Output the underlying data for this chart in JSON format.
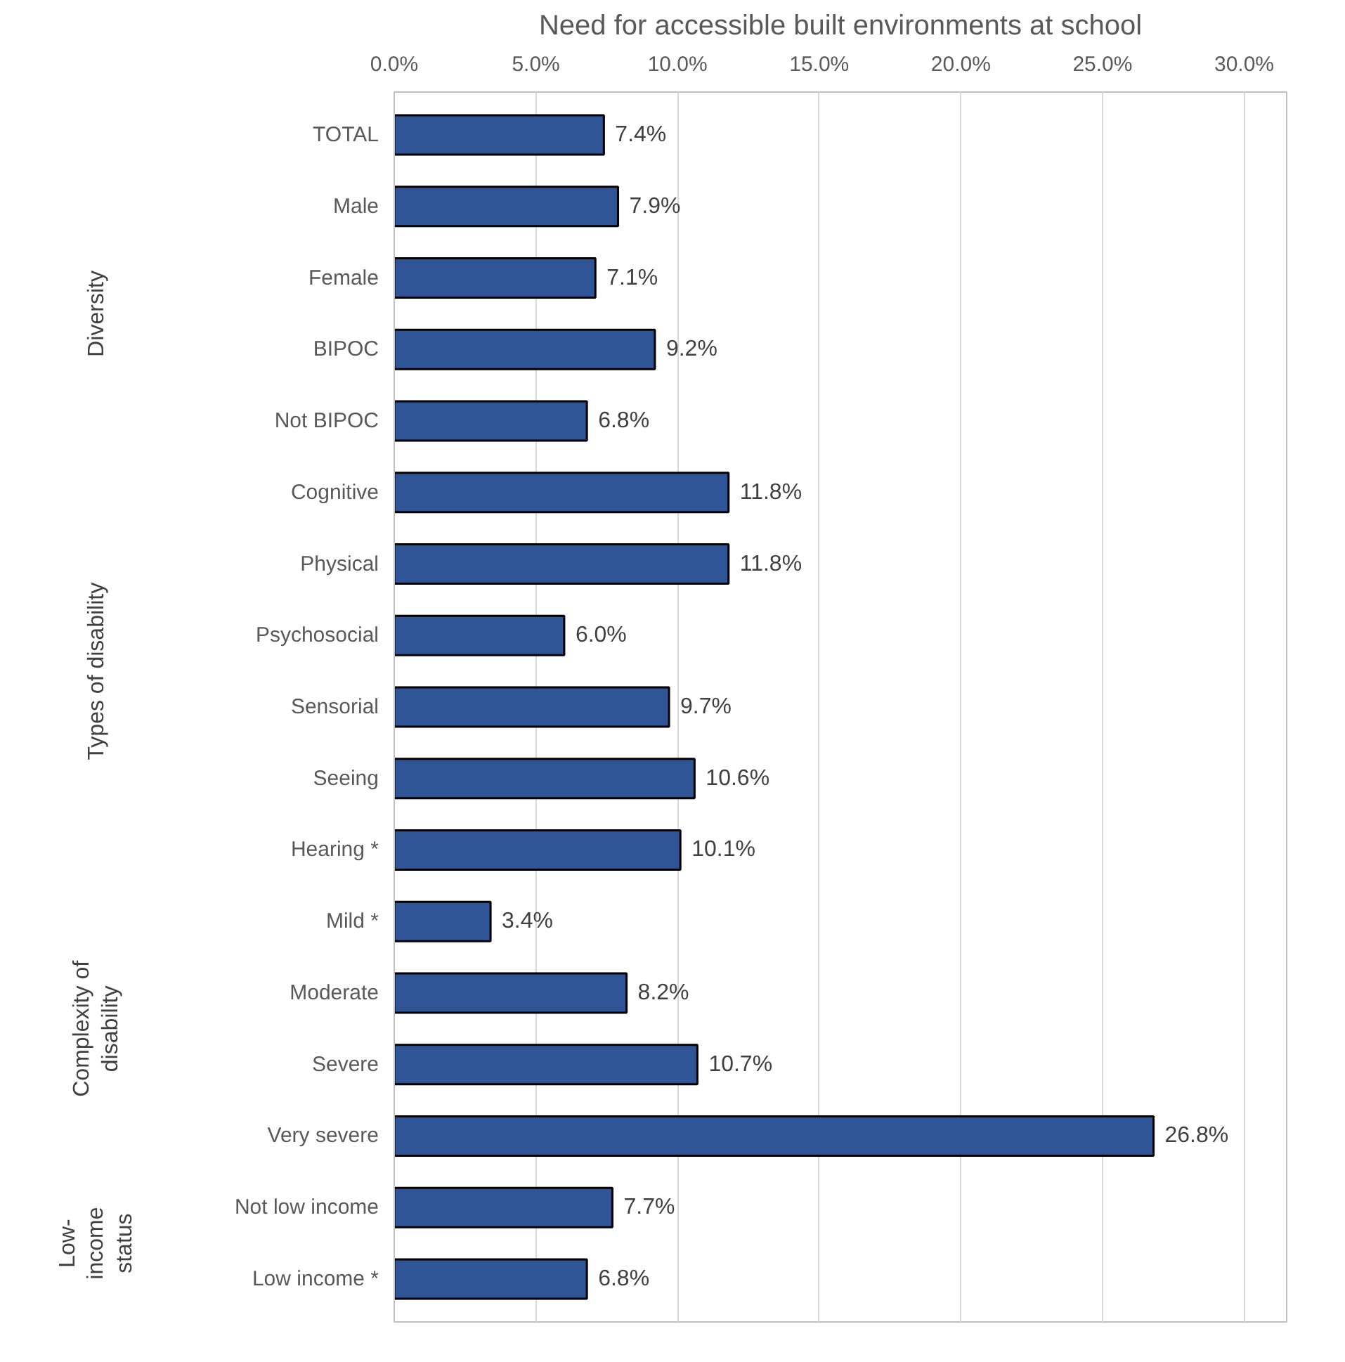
{
  "chart_data": {
    "type": "bar",
    "orientation": "horizontal",
    "title": "Need for accessible built environments at school",
    "categories": [
      "TOTAL",
      "Male",
      "Female",
      "BIPOC",
      "Not BIPOC",
      "Cognitive",
      "Physical",
      "Psychosocial",
      "Sensorial",
      "Seeing",
      "Hearing *",
      "Mild *",
      "Moderate",
      "Severe",
      "Very severe",
      "Not low income",
      "Low income *"
    ],
    "values": [
      7.4,
      7.9,
      7.1,
      9.2,
      6.8,
      11.8,
      11.8,
      6.0,
      9.7,
      10.6,
      10.1,
      3.4,
      8.2,
      10.7,
      26.8,
      7.7,
      6.8
    ],
    "value_labels": [
      "7.4%",
      "7.9%",
      "7.1%",
      "9.2%",
      "6.8%",
      "11.8%",
      "11.8%",
      "6.0%",
      "9.7%",
      "10.6%",
      "10.1%",
      "3.4%",
      "8.2%",
      "10.7%",
      "26.8%",
      "7.7%",
      "6.8%"
    ],
    "color": "#2f5597",
    "xlim": [
      0,
      31.5
    ],
    "xticks": [
      {
        "value": 0,
        "label": "0.0%"
      },
      {
        "value": 5,
        "label": "5.0%"
      },
      {
        "value": 10,
        "label": "10.0%"
      },
      {
        "value": 15,
        "label": "15.0%"
      },
      {
        "value": 20,
        "label": "20.0%"
      },
      {
        "value": 25,
        "label": "25.0%"
      },
      {
        "value": 30,
        "label": "30.0%"
      }
    ],
    "grid": "x",
    "legend": false,
    "annotations": [
      "Diversity",
      "Types of disability",
      "Complexity of disability",
      "Low-income status"
    ]
  }
}
